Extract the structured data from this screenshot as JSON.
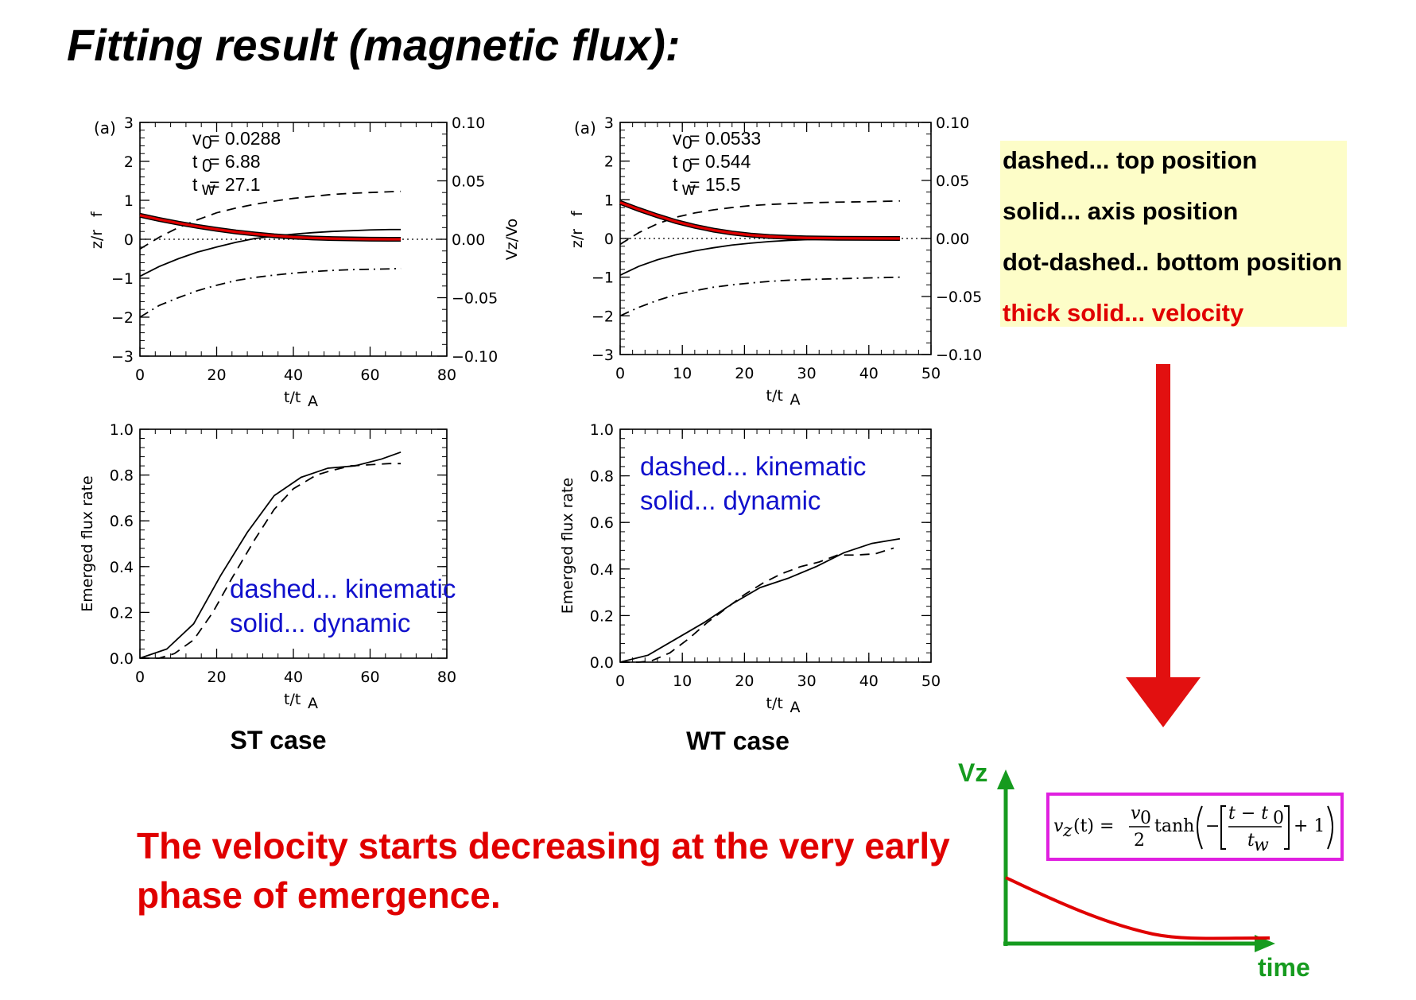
{
  "page": {
    "title": "Fitting result (magnetic flux):"
  },
  "legend": {
    "items": [
      {
        "label": "dashed... top position",
        "color": "#000000"
      },
      {
        "label": "solid... axis position",
        "color": "#000000"
      },
      {
        "label": "dot-dashed.. bottom position",
        "color": "#000000"
      },
      {
        "label": "thick solid... velocity",
        "color": "#e00000"
      }
    ],
    "background": "#fdfdc8"
  },
  "cases": [
    {
      "label": "ST case"
    },
    {
      "label": "WT case"
    }
  ],
  "annotations": {
    "kinematic": "dashed... kinematic",
    "dynamic": "solid... dynamic"
  },
  "conclusion": {
    "line1": "The velocity starts decreasing at the very early",
    "line2": "phase of emergence."
  },
  "sketch": {
    "y_label": "Vz",
    "x_label": "time",
    "formula": "v_z(t) = (v0/2) tanh(−[(t − t0)/tw] + 1)",
    "formula_parts": {
      "lhs": "v",
      "sub_z": "z",
      "t": "(t) =",
      "num": "v",
      "num_sub": "0",
      "den": "2",
      "tanh": "tanh",
      "frac_num": "t − t",
      "frac_num_sub": "0",
      "frac_den": "t",
      "frac_den_sub": "w",
      "plus_one": "+ 1"
    },
    "axis_color": "#169b1f",
    "curve_color": "#e00000",
    "box_color": "#e020e0"
  },
  "chart_data": [
    {
      "id": "st-position",
      "type": "line",
      "panel_tag": "(a)",
      "xlabel": "t/t_A",
      "ylabel": "z/r_f",
      "y2label": "Vz/Vo",
      "xlim": [
        0,
        80
      ],
      "ylim": [
        -3,
        3
      ],
      "y2lim": [
        -0.1,
        0.1
      ],
      "xticks": [
        0,
        20,
        40,
        60,
        80
      ],
      "yticks": [
        -3,
        -2,
        -1,
        0,
        1,
        2,
        3
      ],
      "y2ticks": [
        "-0.10",
        "-0.05",
        "0.00",
        "0.05",
        "0.10"
      ],
      "params": [
        {
          "sym": "v",
          "sub": "0",
          "val": " = 0.0288"
        },
        {
          "sym": "t",
          "sub": "0",
          "val": " = 6.88"
        },
        {
          "sym": "t",
          "sub": "w",
          "val": " = 27.1"
        }
      ],
      "series": [
        {
          "style": "dashed",
          "x": [
            0,
            5,
            10,
            15,
            20,
            25,
            30,
            35,
            40,
            45,
            50,
            55,
            60,
            65,
            68
          ],
          "y": [
            -0.25,
            0.05,
            0.3,
            0.5,
            0.68,
            0.8,
            0.9,
            0.98,
            1.05,
            1.1,
            1.15,
            1.18,
            1.2,
            1.22,
            1.23
          ]
        },
        {
          "style": "solid",
          "x": [
            0,
            5,
            10,
            15,
            20,
            25,
            30,
            35,
            40,
            45,
            50,
            55,
            60,
            65,
            68
          ],
          "y": [
            -0.95,
            -0.7,
            -0.5,
            -0.33,
            -0.2,
            -0.08,
            0.02,
            0.08,
            0.13,
            0.17,
            0.2,
            0.22,
            0.24,
            0.25,
            0.25
          ]
        },
        {
          "style": "dotdash",
          "x": [
            0,
            5,
            10,
            15,
            20,
            25,
            30,
            35,
            40,
            45,
            50,
            55,
            60,
            65,
            68
          ],
          "y": [
            -2.0,
            -1.7,
            -1.5,
            -1.32,
            -1.18,
            -1.06,
            -0.98,
            -0.92,
            -0.87,
            -0.83,
            -0.8,
            -0.78,
            -0.77,
            -0.76,
            -0.75
          ]
        },
        {
          "style": "velocity",
          "axis": "y2",
          "x": [
            0,
            5,
            10,
            15,
            20,
            25,
            30,
            35,
            40,
            45,
            50,
            55,
            60,
            65,
            68
          ],
          "y": [
            0.0205,
            0.017,
            0.0138,
            0.011,
            0.0085,
            0.0063,
            0.0045,
            0.003,
            0.0019,
            0.0011,
            0.0006,
            0.0003,
            0.0001,
            0.0,
            0.0
          ]
        }
      ]
    },
    {
      "id": "wt-position",
      "type": "line",
      "panel_tag": "(a)",
      "xlabel": "t/t_A",
      "ylabel": "z/r_f",
      "y2label": "",
      "xlim": [
        0,
        50
      ],
      "ylim": [
        -3,
        3
      ],
      "y2lim": [
        -0.1,
        0.1
      ],
      "xticks": [
        0,
        10,
        20,
        30,
        40,
        50
      ],
      "yticks": [
        -3,
        -2,
        -1,
        0,
        1,
        2,
        3
      ],
      "y2ticks": [
        "-0.10",
        "-0.05",
        "0.00",
        "0.05",
        "0.10"
      ],
      "params": [
        {
          "sym": "v",
          "sub": "0",
          "val": " = 0.0533"
        },
        {
          "sym": "t",
          "sub": "0",
          "val": " = 0.544"
        },
        {
          "sym": "t",
          "sub": "w",
          "val": " = 15.5"
        }
      ],
      "series": [
        {
          "style": "dashed",
          "x": [
            0,
            3,
            6,
            9,
            12,
            15,
            18,
            21,
            24,
            27,
            30,
            35,
            40,
            45
          ],
          "y": [
            -0.15,
            0.15,
            0.38,
            0.55,
            0.66,
            0.74,
            0.8,
            0.85,
            0.88,
            0.9,
            0.92,
            0.94,
            0.95,
            0.97
          ]
        },
        {
          "style": "solid",
          "x": [
            0,
            3,
            6,
            9,
            12,
            15,
            18,
            21,
            24,
            27,
            30,
            35,
            40,
            45
          ],
          "y": [
            -0.95,
            -0.72,
            -0.55,
            -0.42,
            -0.32,
            -0.24,
            -0.17,
            -0.12,
            -0.08,
            -0.05,
            -0.03,
            -0.01,
            0.0,
            0.0
          ]
        },
        {
          "style": "dotdash",
          "x": [
            0,
            3,
            6,
            9,
            12,
            15,
            18,
            21,
            24,
            27,
            30,
            35,
            40,
            45
          ],
          "y": [
            -2.0,
            -1.78,
            -1.6,
            -1.45,
            -1.35,
            -1.26,
            -1.2,
            -1.15,
            -1.11,
            -1.08,
            -1.06,
            -1.04,
            -1.02,
            -1.0
          ]
        },
        {
          "style": "velocity",
          "axis": "y2",
          "x": [
            0,
            3,
            6,
            9,
            12,
            15,
            18,
            21,
            24,
            27,
            30,
            35,
            40,
            45
          ],
          "y": [
            0.031,
            0.025,
            0.0195,
            0.0145,
            0.0105,
            0.0072,
            0.0047,
            0.0029,
            0.0017,
            0.001,
            0.0005,
            0.0002,
            0.0001,
            0.0
          ]
        }
      ]
    },
    {
      "id": "st-flux",
      "type": "line",
      "xlabel": "t/t_A",
      "ylabel": "Emerged flux rate",
      "xlim": [
        0,
        80
      ],
      "ylim": [
        0,
        1
      ],
      "xticks": [
        0,
        20,
        40,
        60,
        80
      ],
      "yticks": [
        "0.0",
        "0.2",
        "0.4",
        "0.6",
        "0.8",
        "1.0"
      ],
      "series": [
        {
          "style": "dashed",
          "name": "kinematic",
          "x": [
            0,
            5,
            9,
            14,
            19,
            24,
            30,
            35,
            40,
            46,
            50,
            55,
            60,
            65,
            68
          ],
          "y": [
            0.0,
            0.0,
            0.02,
            0.08,
            0.2,
            0.35,
            0.52,
            0.65,
            0.74,
            0.8,
            0.82,
            0.84,
            0.845,
            0.85,
            0.85
          ]
        },
        {
          "style": "solid",
          "name": "dynamic",
          "x": [
            0,
            7,
            14,
            21,
            28,
            35,
            42,
            49,
            56,
            63,
            68
          ],
          "y": [
            0.0,
            0.04,
            0.15,
            0.36,
            0.55,
            0.71,
            0.79,
            0.83,
            0.84,
            0.87,
            0.9
          ]
        }
      ]
    },
    {
      "id": "wt-flux",
      "type": "line",
      "xlabel": "t/t_A",
      "ylabel": "Emerged flux rate",
      "xlim": [
        0,
        50
      ],
      "ylim": [
        0,
        1
      ],
      "xticks": [
        0,
        10,
        20,
        30,
        40,
        50
      ],
      "yticks": [
        "0.0",
        "0.2",
        "0.4",
        "0.6",
        "0.8",
        "1.0"
      ],
      "series": [
        {
          "style": "dashed",
          "name": "kinematic",
          "x": [
            0,
            3,
            5,
            8,
            11,
            14,
            17,
            20,
            23,
            26,
            29,
            32,
            35,
            38,
            41,
            44
          ],
          "y": [
            0.0,
            0.0,
            0.005,
            0.04,
            0.1,
            0.17,
            0.23,
            0.29,
            0.34,
            0.38,
            0.41,
            0.43,
            0.46,
            0.46,
            0.465,
            0.49
          ]
        },
        {
          "style": "solid",
          "name": "dynamic",
          "x": [
            0,
            4.5,
            9,
            13.5,
            18,
            22.5,
            27,
            31.5,
            36,
            40.5,
            45
          ],
          "y": [
            0.0,
            0.03,
            0.1,
            0.17,
            0.25,
            0.32,
            0.36,
            0.41,
            0.47,
            0.51,
            0.53
          ]
        }
      ]
    }
  ]
}
